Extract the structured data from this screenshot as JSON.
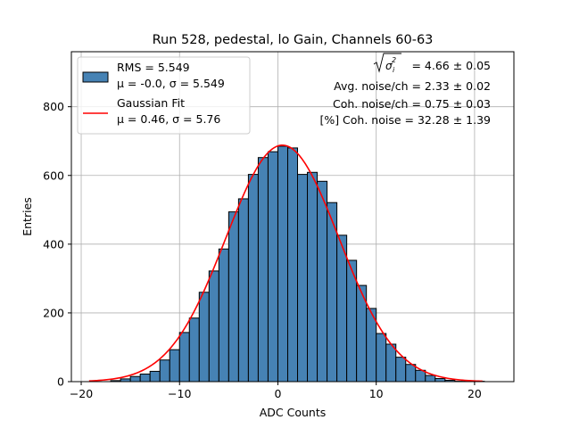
{
  "chart_data": {
    "type": "bar",
    "title": "Run 528, pedestal, lo Gain, Channels 60-63",
    "xlabel": "ADC Counts",
    "ylabel": "Entries",
    "xlim": [
      -21,
      24
    ],
    "ylim": [
      0,
      960
    ],
    "xticks": [
      -20,
      -10,
      0,
      10,
      20
    ],
    "yticks": [
      0,
      200,
      400,
      600,
      800
    ],
    "grid": true,
    "bin_width": 1,
    "bins": [
      {
        "x0": -17,
        "count": 3
      },
      {
        "x0": -16,
        "count": 8
      },
      {
        "x0": -15,
        "count": 15
      },
      {
        "x0": -14,
        "count": 22
      },
      {
        "x0": -13,
        "count": 30
      },
      {
        "x0": -12,
        "count": 63
      },
      {
        "x0": -11,
        "count": 93
      },
      {
        "x0": -10,
        "count": 143
      },
      {
        "x0": -9,
        "count": 185
      },
      {
        "x0": -8,
        "count": 260
      },
      {
        "x0": -7,
        "count": 322
      },
      {
        "x0": -6,
        "count": 386
      },
      {
        "x0": -5,
        "count": 494
      },
      {
        "x0": -4,
        "count": 532
      },
      {
        "x0": -3,
        "count": 603
      },
      {
        "x0": -2,
        "count": 652
      },
      {
        "x0": -1,
        "count": 669
      },
      {
        "x0": 0,
        "count": 685
      },
      {
        "x0": 1,
        "count": 680
      },
      {
        "x0": 2,
        "count": 603
      },
      {
        "x0": 3,
        "count": 609
      },
      {
        "x0": 4,
        "count": 583
      },
      {
        "x0": 5,
        "count": 521
      },
      {
        "x0": 6,
        "count": 426
      },
      {
        "x0": 7,
        "count": 353
      },
      {
        "x0": 8,
        "count": 280
      },
      {
        "x0": 9,
        "count": 213
      },
      {
        "x0": 10,
        "count": 140
      },
      {
        "x0": 11,
        "count": 109
      },
      {
        "x0": 12,
        "count": 71
      },
      {
        "x0": 13,
        "count": 50
      },
      {
        "x0": 14,
        "count": 33
      },
      {
        "x0": 15,
        "count": 18
      },
      {
        "x0": 16,
        "count": 9
      },
      {
        "x0": 17,
        "count": 4
      },
      {
        "x0": 18,
        "count": 1
      },
      {
        "x0": 19,
        "count": 1
      },
      {
        "x0": 20,
        "count": 1
      }
    ],
    "fit": {
      "mu": 0.46,
      "sigma": 5.76,
      "amplitude": 688,
      "x_range": [
        -19.2,
        20.8
      ]
    },
    "series": [
      {
        "name": "RMS = 5.549",
        "name2": "μ = -0.0, σ = 5.549",
        "kind": "histogram",
        "color": "#4682b4"
      },
      {
        "name": "Gaussian Fit",
        "name2": "μ = 0.46, σ = 5.76",
        "kind": "line",
        "color": "#ff0000"
      }
    ],
    "legend_position": "top-left",
    "annotations": {
      "sqrt_sigma_value": "= 4.66 ± 0.05",
      "avg_noise": "Avg. noise/ch = 2.33 ± 0.02",
      "coh_noise": "Coh. noise/ch = 0.75 ± 0.03",
      "pct_coh_noise": "[%] Coh. noise = 32.28 ± 1.39"
    }
  },
  "colors": {
    "bar_fill": "#4682b4",
    "bar_edge": "#000000",
    "fit_line": "#ff0000",
    "grid": "#b0b0b0"
  }
}
